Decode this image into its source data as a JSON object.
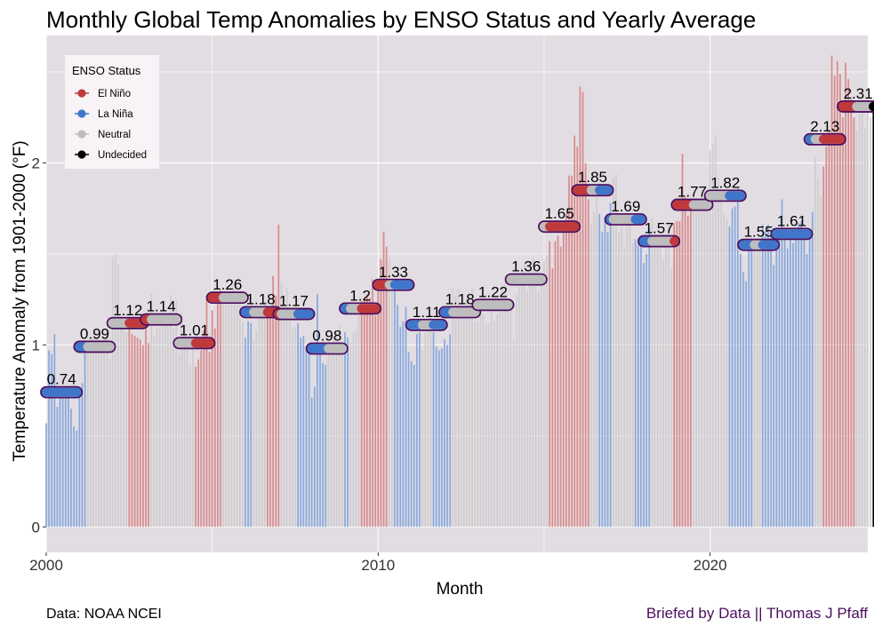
{
  "chart_data": {
    "type": "bar",
    "title": "Monthly Global Temp Anomalies by ENSO Status and Yearly Average",
    "xlabel": "Month",
    "ylabel": "Temperature Anomaly from 1901-2000  (°F)",
    "xlim": [
      2000,
      2024.75
    ],
    "ylim": [
      -0.14,
      2.7
    ],
    "x_ticks": [
      2000,
      2010,
      2020
    ],
    "x_tick_labels": [
      "2000",
      "2010",
      "2020"
    ],
    "y_ticks": [
      0,
      1,
      2
    ],
    "y_tick_labels": [
      "0",
      "1",
      "2"
    ],
    "grid": true,
    "legend": {
      "title": "ENSO Status",
      "position": "top-left",
      "entries": [
        {
          "label": "El Niño",
          "color": "#c0393b"
        },
        {
          "label": "La Niña",
          "color": "#3f76c9"
        },
        {
          "label": "Neutral",
          "color": "#bdbdbd"
        },
        {
          "label": "Undecided",
          "color": "#000000"
        }
      ]
    },
    "colors": {
      "el_nino": "#c0393b",
      "la_nina": "#3f76c9",
      "neutral": "#bdbdbd",
      "undecided": "#000000",
      "el_nino_bar": "#d9898b",
      "la_nina_bar": "#86a8dd",
      "neutral_bar": "#d0cdd0",
      "panel_bg": "#e2dde2",
      "pill_outline": "#4b0d5e"
    },
    "yearly_average": {
      "years": [
        2000,
        2001,
        2002,
        2003,
        2004,
        2005,
        2006,
        2007,
        2008,
        2009,
        2010,
        2011,
        2012,
        2013,
        2014,
        2015,
        2016,
        2017,
        2018,
        2019,
        2020,
        2021,
        2022,
        2023,
        2024
      ],
      "values": [
        0.74,
        0.99,
        1.12,
        1.14,
        1.01,
        1.26,
        1.18,
        1.17,
        0.98,
        1.2,
        1.33,
        1.11,
        1.18,
        1.22,
        1.36,
        1.65,
        1.85,
        1.69,
        1.57,
        1.77,
        1.82,
        1.55,
        1.61,
        2.13,
        2.31
      ],
      "labels": [
        "0.74",
        "0.99",
        "1.12",
        "1.14",
        "1.01",
        "1.26",
        "1.18",
        "1.17",
        "0.98",
        "1.2",
        "1.33",
        "1.11",
        "1.18",
        "1.22",
        "1.36",
        "1.65",
        "1.85",
        "1.69",
        "1.57",
        "1.77",
        "1.82",
        "1.55",
        "1.61",
        "2.13",
        "2.31"
      ]
    },
    "enso_monthly": [
      "LLLLLLLLLLLL",
      "LLLNNNNNNNNN",
      "NNNNNNEEEEEE",
      "EENNNNNNNNNN",
      "NNNNNNEEEEEE",
      "EEEENNNNNNNN",
      "LLLNNNNNEEEE",
      "ENNNNNNLLLLL",
      "LLLLLLNNNNNN",
      "LLNNNNEEEEEE",
      "EEEENNLLLLLL",
      "LLLLNNNNLLLL",
      "LLLNNNNNNNNN",
      "NNNNNNNNNNNN",
      "NNNNNNNNNNNN",
      "NNEEEEEEEEEE",
      "EEEEENNNLLLL",
      "LNNNNNNNNLLL",
      "LLLNNNNNNNNE",
      "EEEEEENNNNNN",
      "NNNNNNNLLLLL",
      "LLLLNNNLLLLL",
      "LLLLLLLLLLLL",
      "LLNNNEEEEEEE",
      "EEEEENNNNNNU"
    ],
    "anomaly_monthly": [
      [
        0.57,
        0.97,
        0.95,
        1.06,
        0.66,
        0.71,
        0.75,
        0.74,
        0.71,
        0.65,
        0.55,
        0.53
      ],
      [
        0.77,
        0.79,
        1.02,
        1.01,
        0.99,
        1.06,
        1.07,
        1.03,
        1.0,
        1.04,
        1.08,
        0.92
      ],
      [
        1.48,
        1.5,
        1.44,
        1.12,
        1.12,
        1.07,
        1.11,
        1.06,
        1.05,
        1.04,
        1.03,
        1.0
      ],
      [
        1.16,
        1.01,
        1.28,
        1.05,
        1.1,
        1.09,
        1.11,
        1.14,
        1.15,
        1.27,
        1.09,
        1.25
      ],
      [
        0.95,
        1.18,
        1.08,
        1.0,
        0.89,
        0.98,
        0.88,
        0.92,
        0.97,
        1.08,
        1.27,
        0.96
      ],
      [
        1.19,
        1.09,
        1.29,
        1.3,
        1.29,
        1.24,
        1.27,
        1.22,
        1.33,
        1.25,
        1.23,
        1.12
      ],
      [
        1.04,
        1.13,
        1.12,
        1.03,
        1.08,
        1.18,
        1.15,
        1.24,
        1.16,
        1.19,
        1.38,
        1.27
      ],
      [
        1.66,
        1.34,
        1.22,
        1.31,
        1.17,
        1.09,
        1.1,
        1.12,
        1.04,
        1.05,
        0.99,
        0.95
      ],
      [
        0.71,
        0.77,
        1.28,
        0.99,
        0.9,
        0.89,
        0.95,
        0.95,
        1.04,
        1.06,
        1.11,
        0.96
      ],
      [
        1.07,
        1.04,
        1.01,
        1.07,
        1.08,
        1.16,
        1.24,
        1.26,
        1.28,
        1.26,
        1.36,
        1.16
      ],
      [
        1.31,
        1.47,
        1.62,
        1.54,
        1.48,
        1.36,
        1.32,
        1.22,
        1.1,
        1.13,
        1.21,
        0.96
      ],
      [
        0.91,
        0.89,
        1.06,
        1.07,
        0.97,
        1.07,
        1.15,
        1.15,
        1.07,
        0.99,
        0.97,
        0.98
      ],
      [
        1.03,
        1.0,
        1.06,
        1.31,
        1.27,
        1.31,
        1.15,
        1.19,
        1.25,
        1.29,
        1.31,
        1.13
      ],
      [
        1.13,
        1.19,
        1.17,
        1.12,
        1.12,
        1.22,
        1.13,
        1.17,
        1.22,
        1.33,
        1.37,
        1.25
      ],
      [
        1.24,
        1.03,
        1.28,
        1.32,
        1.42,
        1.45,
        1.3,
        1.43,
        1.48,
        1.4,
        1.3,
        1.35
      ],
      [
        1.46,
        1.49,
        1.57,
        1.42,
        1.57,
        1.6,
        1.54,
        1.63,
        1.72,
        1.93,
        1.93,
        2.15
      ],
      [
        2.09,
        2.42,
        2.39,
        2.0,
        1.8,
        1.67,
        1.73,
        1.82,
        1.72,
        1.62,
        1.7,
        1.62
      ],
      [
        1.78,
        1.92,
        1.94,
        1.62,
        1.69,
        1.53,
        1.68,
        1.69,
        1.56,
        1.58,
        1.55,
        1.54
      ],
      [
        1.45,
        1.5,
        1.64,
        1.7,
        1.55,
        1.6,
        1.59,
        1.47,
        1.55,
        1.68,
        1.42,
        1.67
      ],
      [
        1.68,
        1.68,
        2.05,
        1.81,
        1.71,
        1.75,
        1.74,
        1.74,
        1.78,
        1.86,
        1.82,
        1.78
      ],
      [
        2.07,
        2.1,
        2.15,
        1.92,
        1.81,
        1.72,
        1.69,
        1.65,
        1.75,
        1.76,
        1.86,
        1.5
      ],
      [
        1.4,
        1.35,
        1.53,
        1.54,
        1.55,
        1.53,
        1.59,
        1.66,
        1.62,
        1.66,
        1.6,
        1.44
      ],
      [
        1.6,
        1.58,
        1.8,
        1.59,
        1.53,
        1.63,
        1.56,
        1.64,
        1.67,
        1.68,
        1.59,
        1.5
      ],
      [
        1.62,
        1.73,
        2.03,
        1.91,
        1.82,
        1.98,
        2.09,
        2.18,
        2.59,
        2.48,
        2.56,
        2.49
      ],
      [
        2.25,
        2.55,
        2.46,
        2.35,
        2.25,
        2.18,
        2.27,
        2.3,
        2.19,
        2.34,
        2.25,
        2.31
      ]
    ]
  },
  "caption_left": "Data: NOAA NCEI",
  "caption_right": "Briefed by Data || Thomas J Pfaff"
}
